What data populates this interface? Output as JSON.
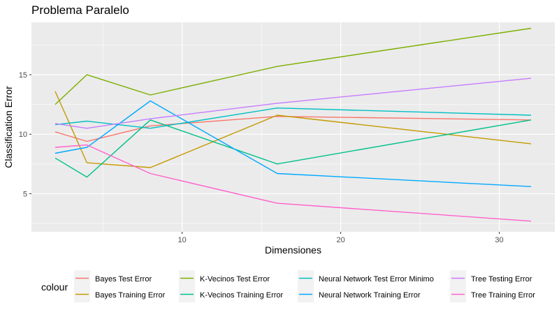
{
  "chart_data": {
    "type": "line",
    "title": "Problema Paralelo",
    "xlabel": "Dimensiones",
    "ylabel": "Classification Error",
    "xlim": [
      0.5,
      33.5
    ],
    "ylim": [
      1.8,
      19.4
    ],
    "xticks": [
      10,
      20,
      30
    ],
    "yticks": [
      5,
      10,
      15
    ],
    "xtick_labels": [
      "10",
      "20",
      "30"
    ],
    "ytick_labels": [
      "5",
      "10",
      "15"
    ],
    "grid": true,
    "legend": {
      "title": "colour",
      "placement": "bottom"
    },
    "x": [
      2,
      4,
      8,
      16,
      32
    ],
    "series": [
      {
        "name": "Bayes Test Error",
        "color": "#F8766D",
        "values": [
          10.2,
          9.4,
          10.7,
          11.5,
          11.2
        ]
      },
      {
        "name": "Bayes Training Error",
        "color": "#C49A00",
        "values": [
          13.6,
          7.6,
          7.2,
          11.6,
          9.2
        ]
      },
      {
        "name": "K-Vecinos Test Error",
        "color": "#7CAE00",
        "values": [
          12.5,
          15.0,
          13.3,
          15.7,
          18.9
        ]
      },
      {
        "name": "K-Vecinos Training Error",
        "color": "#00C08B",
        "values": [
          8.0,
          6.4,
          11.2,
          7.5,
          11.2
        ]
      },
      {
        "name": "Neural Network Test Error Minimo",
        "color": "#00BFC4",
        "values": [
          10.8,
          11.1,
          10.5,
          12.2,
          11.6
        ]
      },
      {
        "name": "Neural Network Training Error",
        "color": "#00A9FF",
        "values": [
          8.4,
          8.9,
          12.8,
          6.7,
          5.6
        ]
      },
      {
        "name": "Tree Testing Error",
        "color": "#C77CFF",
        "values": [
          10.9,
          10.5,
          11.3,
          12.6,
          14.7
        ]
      },
      {
        "name": "Tree Training Error",
        "color": "#FF61CC",
        "values": [
          8.9,
          9.1,
          6.7,
          4.2,
          2.7
        ]
      }
    ]
  }
}
